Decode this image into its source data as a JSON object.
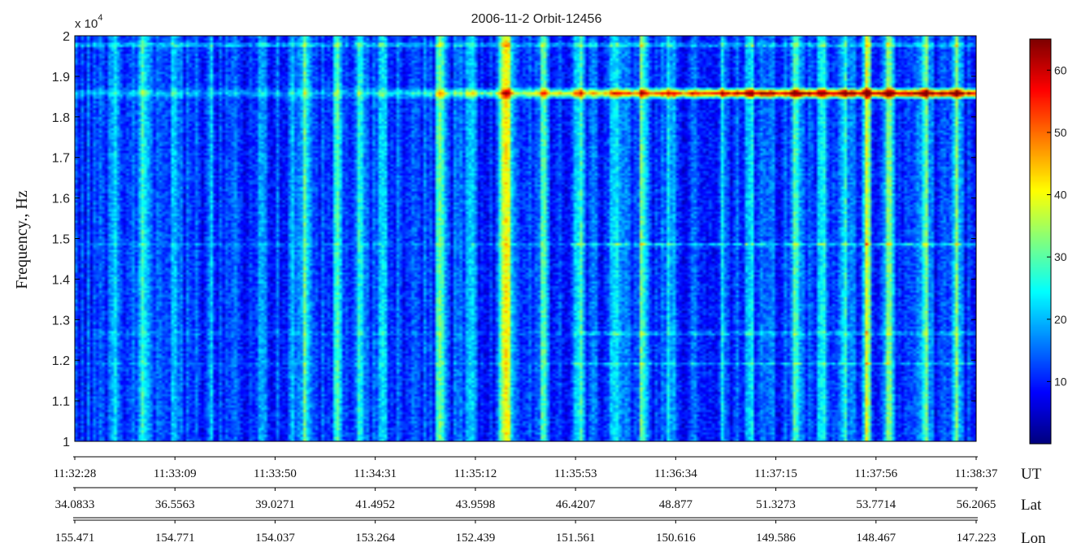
{
  "chart_data": {
    "type": "heatmap",
    "title": "2006-11-2  Orbit-12456",
    "ylabel": "Frequency., Hz",
    "y_multiplier_label": "x 10",
    "y_multiplier_exponent": "4",
    "ylim": [
      10000,
      20000
    ],
    "y_ticks": [
      {
        "value": 10000,
        "label": "1"
      },
      {
        "value": 11000,
        "label": "1.1"
      },
      {
        "value": 12000,
        "label": "1.2"
      },
      {
        "value": 13000,
        "label": "1.3"
      },
      {
        "value": 14000,
        "label": "1.4"
      },
      {
        "value": 15000,
        "label": "1.5"
      },
      {
        "value": 16000,
        "label": "1.6"
      },
      {
        "value": 17000,
        "label": "1.7"
      },
      {
        "value": 18000,
        "label": "1.8"
      },
      {
        "value": 19000,
        "label": "1.9"
      },
      {
        "value": 20000,
        "label": "2"
      }
    ],
    "x_axes": [
      {
        "name": "UT",
        "ticks": [
          "11:32:28",
          "11:33:09",
          "11:33:50",
          "11:34:31",
          "11:35:12",
          "11:35:53",
          "11:36:34",
          "11:37:15",
          "11:37:56",
          "11:38:37"
        ]
      },
      {
        "name": "Lat",
        "ticks": [
          "34.0833",
          "36.5563",
          "39.0271",
          "41.4952",
          "43.9598",
          "46.4207",
          "48.877",
          "51.3273",
          "53.7714",
          "56.2065"
        ]
      },
      {
        "name": "Lon",
        "ticks": [
          "155.471",
          "154.771",
          "154.037",
          "153.264",
          "152.439",
          "151.561",
          "150.616",
          "149.586",
          "148.467",
          "147.223"
        ]
      }
    ],
    "colorbar": {
      "range": [
        0,
        65
      ],
      "ticks": [
        {
          "value": 10,
          "label": "10"
        },
        {
          "value": 20,
          "label": "20"
        },
        {
          "value": 30,
          "label": "30"
        },
        {
          "value": 40,
          "label": "40"
        },
        {
          "value": 50,
          "label": "50"
        },
        {
          "value": 60,
          "label": "60"
        }
      ],
      "colormap": "jet"
    },
    "features": {
      "base_level": 12,
      "vertical_bursts": [
        {
          "time_frac": 0.045,
          "intensity": 12
        },
        {
          "time_frac": 0.075,
          "intensity": 16
        },
        {
          "time_frac": 0.11,
          "intensity": 10
        },
        {
          "time_frac": 0.15,
          "intensity": 8
        },
        {
          "time_frac": 0.205,
          "intensity": 10
        },
        {
          "time_frac": 0.24,
          "intensity": 12
        },
        {
          "time_frac": 0.255,
          "intensity": 18
        },
        {
          "time_frac": 0.29,
          "intensity": 16
        },
        {
          "time_frac": 0.315,
          "intensity": 20
        },
        {
          "time_frac": 0.34,
          "intensity": 16
        },
        {
          "time_frac": 0.405,
          "intensity": 20
        },
        {
          "time_frac": 0.44,
          "intensity": 14
        },
        {
          "time_frac": 0.475,
          "intensity": 20
        },
        {
          "time_frac": 0.48,
          "intensity": 30
        },
        {
          "time_frac": 0.52,
          "intensity": 22
        },
        {
          "time_frac": 0.56,
          "intensity": 16
        },
        {
          "time_frac": 0.6,
          "intensity": 14
        },
        {
          "time_frac": 0.63,
          "intensity": 18
        },
        {
          "time_frac": 0.66,
          "intensity": 12
        },
        {
          "time_frac": 0.72,
          "intensity": 10
        },
        {
          "time_frac": 0.75,
          "intensity": 14
        },
        {
          "time_frac": 0.8,
          "intensity": 18
        },
        {
          "time_frac": 0.83,
          "intensity": 14
        },
        {
          "time_frac": 0.855,
          "intensity": 18
        },
        {
          "time_frac": 0.88,
          "intensity": 26
        },
        {
          "time_frac": 0.905,
          "intensity": 30
        },
        {
          "time_frac": 0.945,
          "intensity": 22
        },
        {
          "time_frac": 0.98,
          "intensity": 18
        }
      ],
      "spectral_lines": [
        {
          "freq": 18600,
          "peak": 62
        },
        {
          "freq": 19800,
          "peak": 30
        },
        {
          "freq": 14850,
          "peak": 28
        },
        {
          "freq": 12650,
          "peak": 26
        },
        {
          "freq": 11900,
          "peak": 22
        }
      ]
    }
  }
}
